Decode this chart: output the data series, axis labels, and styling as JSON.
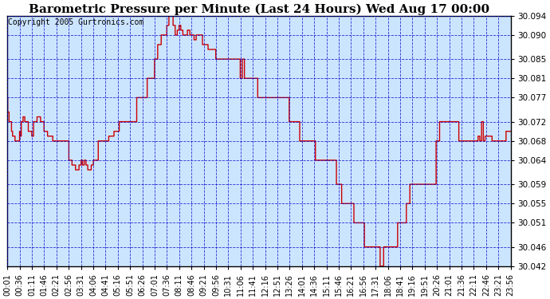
{
  "title": "Barometric Pressure per Minute (Last 24 Hours) Wed Aug 17 00:00",
  "copyright": "Copyright 2005 Gurtronics.com",
  "ylim": [
    30.042,
    30.094
  ],
  "yticks": [
    30.042,
    30.046,
    30.051,
    30.055,
    30.059,
    30.064,
    30.068,
    30.072,
    30.077,
    30.081,
    30.085,
    30.09,
    30.094
  ],
  "xtick_labels": [
    "00:01",
    "00:36",
    "01:11",
    "01:46",
    "02:21",
    "02:56",
    "03:31",
    "04:06",
    "04:41",
    "05:16",
    "05:51",
    "06:26",
    "07:01",
    "07:36",
    "08:11",
    "08:46",
    "09:21",
    "09:56",
    "10:31",
    "11:06",
    "11:41",
    "12:16",
    "12:51",
    "13:26",
    "14:01",
    "14:36",
    "15:11",
    "15:46",
    "16:21",
    "16:56",
    "17:31",
    "18:06",
    "18:41",
    "19:16",
    "19:51",
    "20:26",
    "21:01",
    "21:36",
    "22:11",
    "22:46",
    "23:21",
    "23:56"
  ],
  "line_color": "#cc0000",
  "bg_color": "#cce5ff",
  "grid_color": "#0000cc",
  "title_fontsize": 11,
  "copyright_fontsize": 7,
  "tick_fontsize": 7,
  "ytick_fontsize": 7.5,
  "fig_width": 6.9,
  "fig_height": 3.75,
  "dpi": 100
}
